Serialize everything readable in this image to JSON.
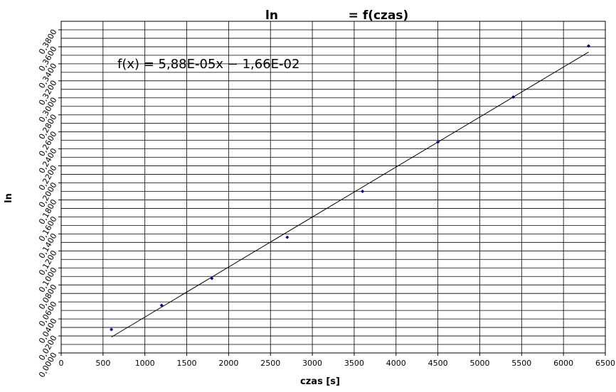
{
  "chart_data": {
    "type": "scatter",
    "title_parts": [
      "ln",
      "= f(czas)"
    ],
    "x_label": "czas [s]",
    "y_label": "ln",
    "trendline": {
      "label": "f(x) = 5,88E-05x − 1,66E-02",
      "slope": 5.88e-05,
      "intercept": -0.0166,
      "color": "#000000"
    },
    "series": [
      {
        "color": "#000080",
        "x": [
          600,
          1200,
          1800,
          2700,
          3600,
          4500,
          5400,
          6300
        ],
        "values": [
          0.0276,
          0.056,
          0.0877,
          0.136,
          0.19,
          0.248,
          0.301,
          0.361
        ]
      }
    ],
    "xlim": [
      0,
      6500
    ],
    "xticks": [
      0,
      500,
      1000,
      1500,
      2000,
      2500,
      3000,
      3500,
      4000,
      4500,
      5000,
      5500,
      6000,
      6500
    ],
    "ylim": [
      0,
      0.39
    ],
    "yticks": [
      {
        "value": 0,
        "label": "0,0000"
      },
      {
        "value": 0.02,
        "label": "0,0200"
      },
      {
        "value": 0.04,
        "label": "0,0400"
      },
      {
        "value": 0.06,
        "label": "0,0600"
      },
      {
        "value": 0.08,
        "label": "0,0800"
      },
      {
        "value": 0.1,
        "label": "0,1000"
      },
      {
        "value": 0.12,
        "label": "0,1200"
      },
      {
        "value": 0.14,
        "label": "0,1400"
      },
      {
        "value": 0.16,
        "label": "0,1600"
      },
      {
        "value": 0.18,
        "label": "0,1800"
      },
      {
        "value": 0.2,
        "label": "0,2000"
      },
      {
        "value": 0.22,
        "label": "0,2200"
      },
      {
        "value": 0.24,
        "label": "0,2400"
      },
      {
        "value": 0.26,
        "label": "0,2600"
      },
      {
        "value": 0.28,
        "label": "0,2800"
      },
      {
        "value": 0.3,
        "label": "0,3000"
      },
      {
        "value": 0.32,
        "label": "0,3200"
      },
      {
        "value": 0.34,
        "label": "0,3400"
      },
      {
        "value": 0.36,
        "label": "0,3600"
      },
      {
        "value": 0.38,
        "label": "0,3800"
      }
    ],
    "grid": true,
    "minor_grid": true
  }
}
